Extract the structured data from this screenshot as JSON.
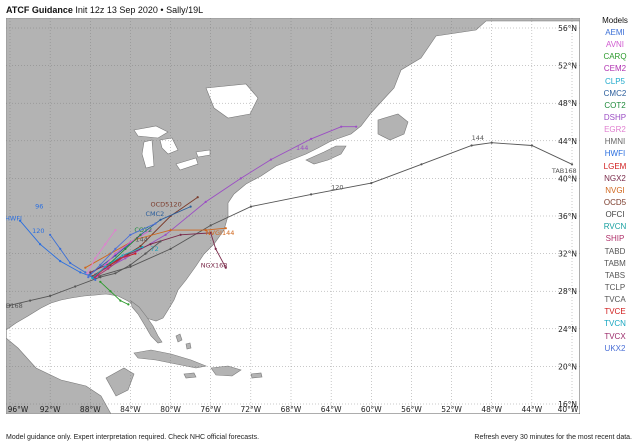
{
  "title": {
    "bold": "ATCF Guidance",
    "rest": "Init 12z 13 Sep 2020 • Sally/19L"
  },
  "models": {
    "header": "Models",
    "items": [
      {
        "name": "AEMI",
        "color": "#3b6fd6"
      },
      {
        "name": "AVNI",
        "color": "#d05ad0"
      },
      {
        "name": "CARQ",
        "color": "#2c9a2c"
      },
      {
        "name": "CEM2",
        "color": "#b02fb0"
      },
      {
        "name": "CLP5",
        "color": "#22aacc"
      },
      {
        "name": "CMC2",
        "color": "#2a5d9c"
      },
      {
        "name": "COT2",
        "color": "#1e8a3a"
      },
      {
        "name": "DSHP",
        "color": "#9b4dc4"
      },
      {
        "name": "EGR2",
        "color": "#e07fd0"
      },
      {
        "name": "HMNI",
        "color": "#666666"
      },
      {
        "name": "HWFI",
        "color": "#2a6fe0"
      },
      {
        "name": "LGEM",
        "color": "#d01c1c"
      },
      {
        "name": "NGX2",
        "color": "#7a2a4a"
      },
      {
        "name": "NVGI",
        "color": "#d0661c"
      },
      {
        "name": "OCD5",
        "color": "#7a3a2a"
      },
      {
        "name": "OFCI",
        "color": "#444444"
      },
      {
        "name": "RVCN",
        "color": "#18a0a0"
      },
      {
        "name": "SHIP",
        "color": "#b0306a"
      },
      {
        "name": "TABD",
        "color": "#555555"
      },
      {
        "name": "TABM",
        "color": "#555555"
      },
      {
        "name": "TABS",
        "color": "#555555"
      },
      {
        "name": "TCLP",
        "color": "#555555"
      },
      {
        "name": "TVCA",
        "color": "#555555"
      },
      {
        "name": "TVCE",
        "color": "#d01c1c"
      },
      {
        "name": "TVCN",
        "color": "#18a6c0"
      },
      {
        "name": "TVCX",
        "color": "#9b2a6a"
      },
      {
        "name": "UKX2",
        "color": "#4a6fd6"
      }
    ]
  },
  "axes": {
    "lon_labels": [
      "96°W",
      "92°W",
      "88°W",
      "84°W",
      "80°W",
      "76°W",
      "72°W",
      "68°W",
      "64°W",
      "60°W",
      "56°W",
      "52°W",
      "48°W",
      "44°W",
      "40°W"
    ],
    "lat_labels": [
      "16°N",
      "20°N",
      "24°N",
      "28°N",
      "32°N",
      "36°N",
      "40°N",
      "44°N",
      "48°N",
      "52°N",
      "56°N"
    ]
  },
  "tracks": [
    {
      "model": "TABD",
      "color": "#555555",
      "points": [
        [
          -87.2,
          29.6
        ],
        [
          -84,
          30.6
        ],
        [
          -80,
          32.5
        ],
        [
          -76,
          35
        ],
        [
          -72,
          37
        ],
        [
          -66,
          38.3
        ],
        [
          -60,
          39.5
        ],
        [
          -55,
          41.5
        ],
        [
          -50,
          43.5
        ],
        [
          -48,
          43.8
        ],
        [
          -44,
          43.5
        ],
        [
          -40,
          41.5
        ]
      ],
      "labels": [
        {
          "text": "120",
          "lon": -64,
          "lat": 38.8
        },
        {
          "text": "144",
          "lon": -50,
          "lat": 44.1
        },
        {
          "text": "TAB168",
          "lon": -42,
          "lat": 40.6
        }
      ]
    },
    {
      "model": "DSHP",
      "color": "#9b4dc4",
      "points": [
        [
          -87.5,
          29.8
        ],
        [
          -84.5,
          31.5
        ],
        [
          -80.5,
          34
        ],
        [
          -76.5,
          37.5
        ],
        [
          -73,
          40
        ],
        [
          -70,
          42
        ],
        [
          -66,
          44.2
        ],
        [
          -63,
          45.5
        ],
        [
          -61.5,
          45.5
        ]
      ],
      "labels": [
        {
          "text": "144",
          "lon": -67.5,
          "lat": 43
        }
      ]
    },
    {
      "model": "OCD5",
      "color": "#7a3a2a",
      "points": [
        [
          -87.8,
          29.6
        ],
        [
          -86,
          30.8
        ],
        [
          -83,
          32.8
        ],
        [
          -80,
          36
        ],
        [
          -77.3,
          38
        ]
      ],
      "labels": [
        {
          "text": "OCD5120",
          "lon": -82,
          "lat": 37
        }
      ]
    },
    {
      "model": "CMC2",
      "color": "#2a5d9c",
      "points": [
        [
          -88,
          29.8
        ],
        [
          -85.5,
          31.8
        ],
        [
          -83,
          34
        ],
        [
          -81,
          35.6
        ],
        [
          -78,
          37
        ]
      ],
      "labels": [
        {
          "text": "CMC2",
          "lon": -82.5,
          "lat": 36
        }
      ]
    },
    {
      "model": "NGX2",
      "color": "#7a2a4a",
      "points": [
        [
          -88,
          30
        ],
        [
          -85,
          31.5
        ],
        [
          -82,
          33
        ],
        [
          -79,
          34
        ],
        [
          -76,
          34.2
        ],
        [
          -75.5,
          32.5
        ],
        [
          -74.5,
          30.5
        ]
      ],
      "labels": [
        {
          "text": "NGX168",
          "lon": -77,
          "lat": 30.5
        }
      ]
    },
    {
      "model": "NVGI",
      "color": "#d0661c",
      "points": [
        [
          -88.5,
          30.5
        ],
        [
          -86,
          32
        ],
        [
          -83.5,
          33.5
        ],
        [
          -80,
          34.5
        ],
        [
          -76.5,
          34.5
        ],
        [
          -74.5,
          34.7
        ]
      ],
      "labels": [
        {
          "text": "NVGI144",
          "lon": -76.5,
          "lat": 34
        }
      ]
    },
    {
      "model": "HWFI",
      "color": "#2a6fe0",
      "points": [
        [
          -87.5,
          29.4
        ],
        [
          -89,
          30
        ],
        [
          -91,
          31.2
        ],
        [
          -93,
          33
        ],
        [
          -95,
          35.5
        ]
      ],
      "labels": [
        {
          "text": "HWFI",
          "lon": -96.5,
          "lat": 35.5
        },
        {
          "text": "120",
          "lon": -93.8,
          "lat": 34.2
        },
        {
          "text": "96",
          "lon": -93.5,
          "lat": 36.8
        }
      ]
    },
    {
      "model": "TABM",
      "color": "#555555",
      "points": [
        [
          -87,
          29.5
        ],
        [
          -89.5,
          28.5
        ],
        [
          -92,
          27.5
        ],
        [
          -94,
          27
        ],
        [
          -96,
          26.5
        ]
      ],
      "labels": [
        {
          "text": "TAB168",
          "lon": -97.2,
          "lat": 26.2
        }
      ]
    },
    {
      "model": "AEMI",
      "color": "#3b6fd6",
      "points": [
        [
          -87.5,
          29.2
        ],
        [
          -88.5,
          30
        ],
        [
          -90,
          31
        ],
        [
          -91,
          32.5
        ],
        [
          -92,
          34
        ]
      ],
      "labels": []
    },
    {
      "model": "AVNI",
      "color": "#d05ad0",
      "points": [
        [
          -87.3,
          29.6
        ],
        [
          -86.5,
          30.8
        ],
        [
          -85.5,
          32
        ],
        [
          -84,
          33.2
        ],
        [
          -82,
          34.5
        ]
      ],
      "labels": []
    },
    {
      "model": "CARQ",
      "color": "#2c9a2c",
      "points": [
        [
          -84.2,
          26.6
        ],
        [
          -85,
          27
        ],
        [
          -86,
          28
        ],
        [
          -87,
          29
        ]
      ],
      "labels": []
    },
    {
      "model": "COT2",
      "color": "#1e8a3a",
      "points": [
        [
          -87.5,
          29.6
        ],
        [
          -86,
          31
        ],
        [
          -84.5,
          32.5
        ],
        [
          -83,
          34
        ]
      ],
      "labels": [
        {
          "text": "COT2",
          "lon": -83.6,
          "lat": 34.3
        }
      ]
    },
    {
      "model": "LGEM",
      "color": "#d01c1c",
      "points": [
        [
          -87.6,
          29.5
        ],
        [
          -86.5,
          30.5
        ],
        [
          -85,
          31.5
        ],
        [
          -83.5,
          32
        ]
      ],
      "labels": []
    },
    {
      "model": "TVCN",
      "color": "#18a6c0",
      "points": [
        [
          -87.8,
          29.4
        ],
        [
          -86.5,
          30.6
        ],
        [
          -84.8,
          31.8
        ],
        [
          -82.8,
          32.7
        ]
      ],
      "labels": [
        {
          "text": "72",
          "lon": -82,
          "lat": 32.3
        }
      ]
    },
    {
      "model": "UKX2",
      "color": "#4a6fd6",
      "points": [
        [
          -88.2,
          29.5
        ],
        [
          -87,
          30.8
        ],
        [
          -85.5,
          32.5
        ],
        [
          -84,
          34
        ],
        [
          -81.5,
          35.2
        ]
      ],
      "labels": []
    },
    {
      "model": "EGR2",
      "color": "#e07fd0",
      "points": [
        [
          -88.3,
          29.9
        ],
        [
          -87.5,
          31.5
        ],
        [
          -86.5,
          33
        ],
        [
          -85.5,
          34.5
        ]
      ],
      "labels": []
    },
    {
      "model": "TCLP",
      "color": "#555555",
      "points": [
        [
          -87,
          29.5
        ],
        [
          -85.5,
          29.9
        ],
        [
          -84,
          30.8
        ],
        [
          -82.5,
          32
        ],
        [
          -81,
          33.3
        ]
      ],
      "labels": [
        {
          "text": "144",
          "lon": -83.5,
          "lat": 33.3
        }
      ]
    },
    {
      "model": "SHIP",
      "color": "#b0306a",
      "points": [
        [
          -87.5,
          29.5
        ],
        [
          -86.2,
          30.4
        ],
        [
          -84.5,
          31.8
        ]
      ],
      "labels": []
    }
  ],
  "footer": {
    "left": "Model guidance only. Expert interpretation required. Check NHC official forecasts.",
    "right": "Refresh every 30 minutes for the most recent data."
  }
}
